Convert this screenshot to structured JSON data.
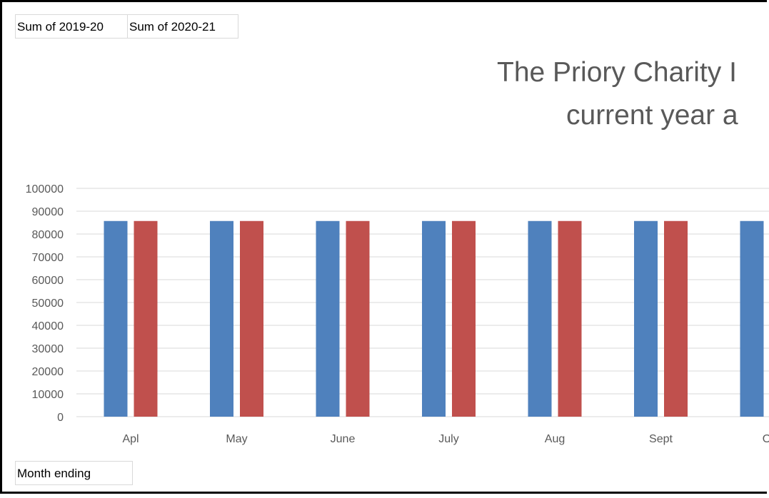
{
  "legend_buttons": [
    "Sum of 2019-20",
    "Sum of 2020-21"
  ],
  "axis_field_button": "Month ending",
  "colors": {
    "series_2019_20": "#4f81bd",
    "series_2020_21": "#c0504d",
    "grid": "#d9d9d9",
    "tick_text": "#595959"
  },
  "chart_data": {
    "type": "bar",
    "title_lines": [
      "The Priory Charity I",
      "current year a"
    ],
    "categories": [
      "Apl",
      "May",
      "June",
      "July",
      "Aug",
      "Sept",
      "O"
    ],
    "series": [
      {
        "name": "Sum of 2019-20",
        "values": [
          85700,
          85700,
          85700,
          85700,
          85700,
          85700,
          85700
        ]
      },
      {
        "name": "Sum of 2020-21",
        "values": [
          85700,
          85700,
          85700,
          85700,
          85700,
          85700,
          null
        ]
      }
    ],
    "ylim": [
      0,
      100000
    ],
    "yticks": [
      0,
      10000,
      20000,
      30000,
      40000,
      50000,
      60000,
      70000,
      80000,
      90000,
      100000
    ],
    "xlabel": "Month ending",
    "grid": true
  }
}
